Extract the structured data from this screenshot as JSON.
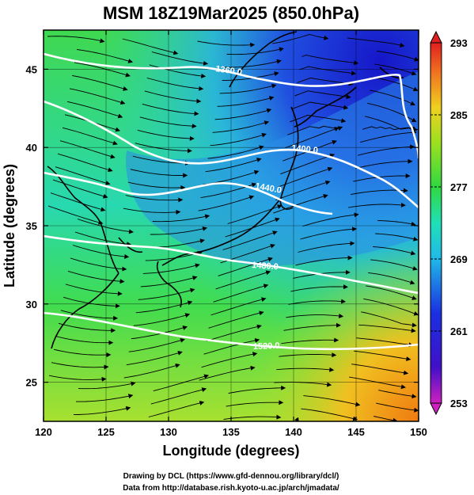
{
  "title": "MSM 18Z19Mar2025 (850.0hPa)",
  "x_axis": {
    "label": "Longitude (degrees)",
    "ticks": [
      "120",
      "125",
      "130",
      "135",
      "140",
      "145",
      "150"
    ]
  },
  "y_axis": {
    "label": "Latitude  (degrees)",
    "ticks": [
      "25",
      "30",
      "35",
      "40",
      "45"
    ]
  },
  "colorbar": {
    "ticks": [
      "293",
      "285",
      "277",
      "269",
      "261",
      "253"
    ]
  },
  "contour_labels": [
    "1360.0",
    "1400.0",
    "1440.0",
    "1480.0",
    "1520.0"
  ],
  "credits": {
    "line1": "Drawing by DCL (https://www.gfd-dennou.org/library/dcl/)",
    "line2": "Data from http://database.rish.kyoto-u.ac.jp/arch/jmadata/"
  },
  "colors": {
    "cold": "#1a1ad8",
    "cool": "#2aa0e8",
    "mid": "#22d8c8",
    "warm": "#3ed63a",
    "hot": "#f08a10",
    "contour": "#ffffff"
  },
  "chart_data": {
    "type": "heatmap",
    "title": "MSM 18Z19Mar2025 (850.0hPa)",
    "xlabel": "Longitude (degrees)",
    "ylabel": "Latitude  (degrees)",
    "xlim": [
      120,
      150
    ],
    "ylim": [
      22.5,
      47.5
    ],
    "colorbar_range": [
      253,
      293
    ],
    "contour_levels": [
      1360,
      1400,
      1440,
      1480,
      1520
    ],
    "grid": true
  }
}
